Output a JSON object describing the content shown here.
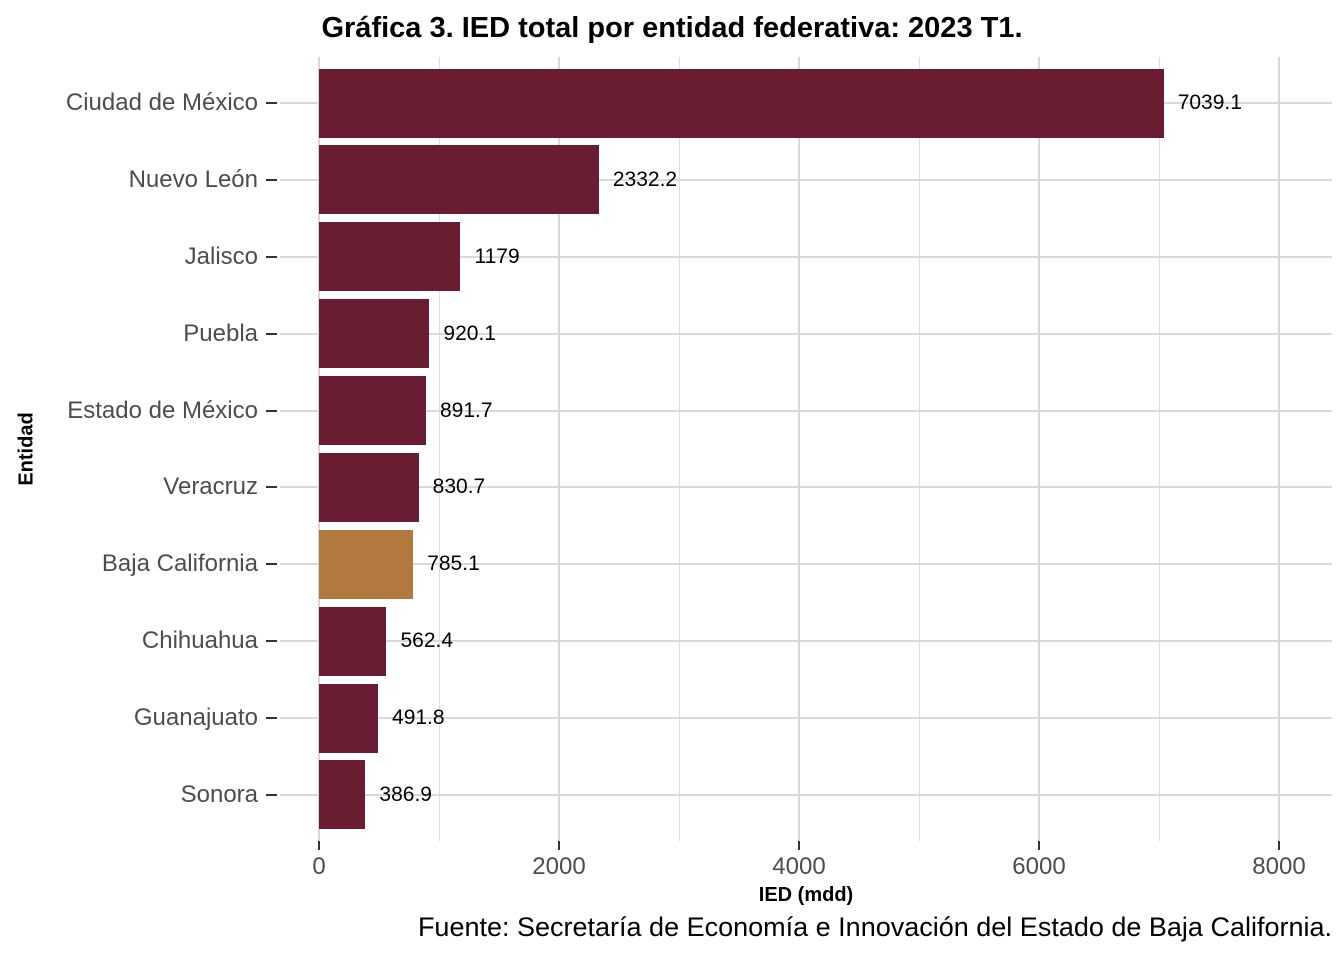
{
  "title": "Gráfica 3. IED total por entidad federativa: 2023 T1.",
  "source": "Fuente: Secretaría de Economía e Innovación del Estado de Baja California.",
  "chart_data": {
    "type": "bar",
    "orientation": "horizontal",
    "title": "Gráfica 3. IED total por entidad federativa: 2023 T1.",
    "xlabel": "IED (mdd)",
    "ylabel": "Entidad",
    "categories": [
      "Ciudad de México",
      "Nuevo León",
      "Jalisco",
      "Puebla",
      "Estado de México",
      "Veracruz",
      "Baja California",
      "Chihuahua",
      "Guanajuato",
      "Sonora"
    ],
    "values": [
      7039.1,
      2332.2,
      1179,
      920.1,
      891.7,
      830.7,
      785.1,
      562.4,
      491.8,
      386.9
    ],
    "value_labels": [
      "7039.1",
      "2332.2",
      "1179",
      "920.1",
      "891.7",
      "830.7",
      "785.1",
      "562.4",
      "491.8",
      "386.9"
    ],
    "x_major_ticks": [
      0,
      2000,
      4000,
      6000,
      8000
    ],
    "x_tick_labels": [
      "0",
      "2000",
      "4000",
      "6000",
      "8000"
    ],
    "x_minor_ticks": [
      1000,
      3000,
      5000,
      7000
    ],
    "xlim": [
      -325,
      8442
    ],
    "grid": true,
    "legend": "none",
    "bar_color": "#691C32",
    "highlight_category": "Baja California",
    "highlight_color": "#B1793E",
    "gridline_color": "#d9d9d9",
    "axis_text_color": "#4d4d4d",
    "tick_color": "#333333"
  }
}
